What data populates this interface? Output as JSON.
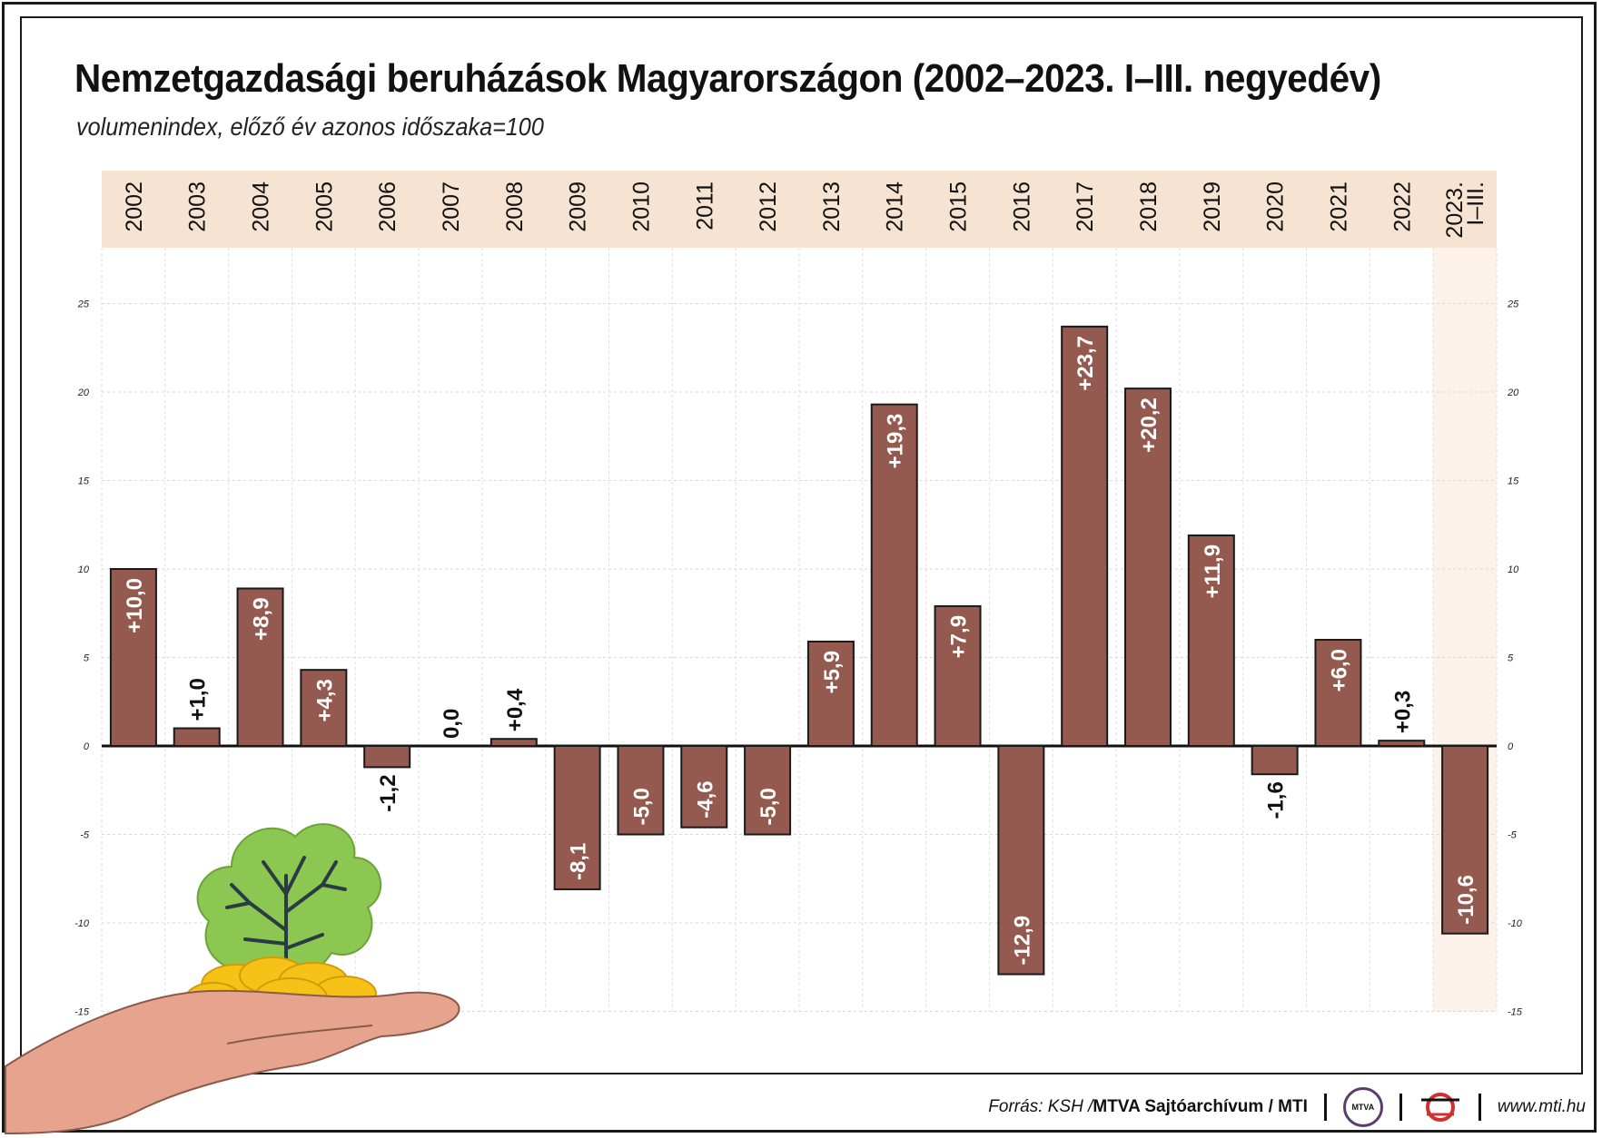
{
  "header": {
    "title": "Nemzetgazdasági beruházások Magyarországon (2002–2023. I–III. negyedév)",
    "subtitle": "volumenindex, előző év azonos időszaka=100"
  },
  "footer": {
    "source_plain": "Forrás: KSH / ",
    "source_bold": "MTVA Sajtóarchívum / MTI",
    "logo_text": "MTVA",
    "url": "www.mti.hu"
  },
  "colors": {
    "bar": "#94594f",
    "header_band": "#f7e3d2",
    "highlight_column": "#fcf2ea",
    "outline": "#1a1a1a"
  },
  "icons": {
    "illustration": "hand-holding-coins-tree-icon",
    "logo_mtva": "mtva-logo-icon",
    "logo_mti": "mti-logo-icon"
  },
  "chart_data": {
    "type": "bar",
    "categories": [
      "2002",
      "2003",
      "2004",
      "2005",
      "2006",
      "2007",
      "2008",
      "2009",
      "2010",
      "2011",
      "2012",
      "2013",
      "2014",
      "2015",
      "2016",
      "2017",
      "2018",
      "2019",
      "2020",
      "2021",
      "2022",
      "2023. I–III."
    ],
    "values": [
      10.0,
      1.0,
      8.9,
      4.3,
      -1.2,
      0.0,
      0.4,
      -8.1,
      -5.0,
      -4.6,
      -5.0,
      5.9,
      19.3,
      7.9,
      -12.9,
      23.7,
      20.2,
      11.9,
      -1.6,
      6.0,
      0.3,
      -10.6
    ],
    "value_labels": [
      "+10,0",
      "+1,0",
      "+8,9",
      "+4,3",
      "-1,2",
      "0,0",
      "+0,4",
      "-8,1",
      "-5,0",
      "-4,6",
      "-5,0",
      "+5,9",
      "+19,3",
      "+7,9",
      "-12,9",
      "+23,7",
      "+20,2",
      "+11,9",
      "-1,6",
      "+6,0",
      "+0,3",
      "-10,6"
    ],
    "y_ticks": [
      25,
      20,
      15,
      10,
      5,
      0,
      -5,
      -10,
      -15
    ],
    "ylim": [
      -15,
      25
    ],
    "grid": true,
    "category_axis_position": "top",
    "highlighted_category": "2023. I–III."
  }
}
